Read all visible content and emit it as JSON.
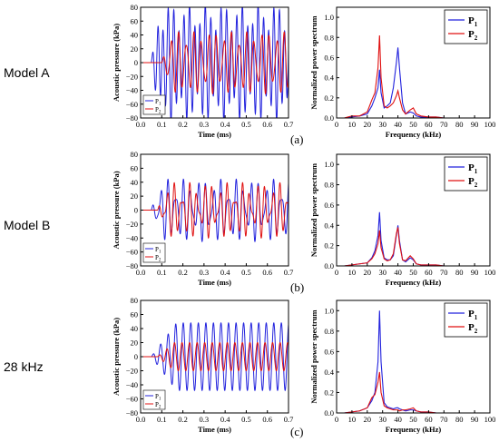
{
  "row_labels": [
    "Model A",
    "Model B",
    "28 kHz"
  ],
  "captions": [
    "(a)",
    "(b)",
    "(c)"
  ],
  "time_axis": {
    "xlabel": "Time (ms)",
    "ylabel": "Acoustic pressure (kPa)",
    "xlim": [
      0,
      0.7
    ],
    "ylim": [
      -80,
      80
    ],
    "xticks": [
      "0.0",
      "0.1",
      "0.2",
      "0.3",
      "0.4",
      "0.5",
      "0.6",
      "0.7"
    ],
    "yticks": [
      "80",
      "60",
      "40",
      "20",
      "0",
      "−20",
      "−40",
      "−60",
      "−80"
    ]
  },
  "freq_axis": {
    "xlabel": "Frequency (kHz)",
    "ylabel": "Normalized power spectrum",
    "xlim": [
      0,
      100
    ],
    "ylim": [
      0,
      1.1
    ],
    "xticks": [
      "0",
      "10",
      "20",
      "30",
      "40",
      "50",
      "60",
      "70",
      "80",
      "90",
      "100"
    ],
    "yticks": [
      "1.0",
      "0.8",
      "0.6",
      "0.4",
      "0.2",
      "0.0"
    ]
  },
  "legend": {
    "p1": "P",
    "p2": "P",
    "sub1": "1",
    "sub2": "2"
  },
  "colors": {
    "p1": "#2222dd",
    "p2": "#e01010"
  },
  "chart_data": [
    {
      "type": "line",
      "panel": "(a) time",
      "x_range": [
        0.05,
        0.7
      ],
      "series": [
        {
          "name": "P1",
          "signal": "oscillation",
          "onset_ms": 0.05,
          "freq_khz": 40,
          "amplitude_kpa": 65,
          "secondary_freq_khz": 28,
          "secondary_amplitude_kpa": 20
        },
        {
          "name": "P2",
          "signal": "oscillation",
          "onset_ms": 0.1,
          "freq_khz": 28,
          "amplitude_kpa": 35,
          "secondary_freq_khz": 40,
          "secondary_amplitude_kpa": 10
        }
      ]
    },
    {
      "type": "line",
      "panel": "(a) spectrum",
      "x": [
        0,
        5,
        10,
        15,
        20,
        23,
        25,
        27,
        28,
        29,
        31,
        33,
        35,
        37,
        39,
        40,
        41,
        43,
        45,
        48,
        50,
        52,
        55,
        60,
        65,
        70,
        80,
        90,
        100
      ],
      "series": [
        {
          "name": "P1",
          "values": [
            0.0,
            0.0,
            0.01,
            0.02,
            0.04,
            0.12,
            0.2,
            0.3,
            0.48,
            0.25,
            0.1,
            0.12,
            0.15,
            0.3,
            0.55,
            0.7,
            0.5,
            0.15,
            0.04,
            0.06,
            0.05,
            0.02,
            0.01,
            0.01,
            0.01,
            0.0,
            0.0,
            0.0,
            0.0
          ]
        },
        {
          "name": "P2",
          "values": [
            0.0,
            0.0,
            0.02,
            0.02,
            0.06,
            0.18,
            0.25,
            0.5,
            0.82,
            0.4,
            0.12,
            0.1,
            0.12,
            0.15,
            0.22,
            0.27,
            0.2,
            0.08,
            0.04,
            0.08,
            0.1,
            0.04,
            0.02,
            0.01,
            0.01,
            0.0,
            0.0,
            0.0,
            0.0
          ]
        }
      ]
    },
    {
      "type": "line",
      "panel": "(b) time",
      "x_range": [
        0.05,
        0.7
      ],
      "series": [
        {
          "name": "P1",
          "signal": "oscillation",
          "onset_ms": 0.05,
          "freq_khz": 28,
          "amplitude_kpa": 30,
          "secondary_freq_khz": 40,
          "secondary_amplitude_kpa": 15
        },
        {
          "name": "P2",
          "signal": "oscillation",
          "onset_ms": 0.08,
          "freq_khz": 28,
          "amplitude_kpa": 25,
          "secondary_freq_khz": 40,
          "secondary_amplitude_kpa": 15
        }
      ]
    },
    {
      "type": "line",
      "panel": "(b) spectrum",
      "x": [
        0,
        5,
        10,
        15,
        20,
        23,
        25,
        27,
        28,
        29,
        31,
        33,
        35,
        37,
        39,
        40,
        41,
        43,
        45,
        48,
        50,
        52,
        55,
        60,
        65,
        70,
        80,
        90,
        100
      ],
      "series": [
        {
          "name": "P1",
          "values": [
            0.0,
            0.0,
            0.01,
            0.02,
            0.03,
            0.08,
            0.15,
            0.3,
            0.53,
            0.25,
            0.08,
            0.06,
            0.06,
            0.1,
            0.3,
            0.4,
            0.25,
            0.06,
            0.04,
            0.08,
            0.06,
            0.02,
            0.01,
            0.01,
            0.01,
            0.0,
            0.0,
            0.0,
            0.0
          ]
        },
        {
          "name": "P2",
          "values": [
            0.0,
            0.0,
            0.01,
            0.02,
            0.03,
            0.07,
            0.12,
            0.22,
            0.35,
            0.18,
            0.07,
            0.05,
            0.06,
            0.12,
            0.32,
            0.38,
            0.22,
            0.06,
            0.05,
            0.1,
            0.07,
            0.02,
            0.01,
            0.01,
            0.01,
            0.0,
            0.0,
            0.0,
            0.0
          ]
        }
      ]
    },
    {
      "type": "line",
      "panel": "(c) time",
      "x_range": [
        0.05,
        0.7
      ],
      "series": [
        {
          "name": "P1",
          "signal": "oscillation",
          "onset_ms": 0.05,
          "freq_khz": 28,
          "amplitude_kpa": 48,
          "rise_ms": 0.12
        },
        {
          "name": "P2",
          "signal": "oscillation",
          "onset_ms": 0.08,
          "freq_khz": 28,
          "amplitude_kpa": 20,
          "rise_ms": 0.08
        }
      ]
    },
    {
      "type": "line",
      "panel": "(c) spectrum",
      "x": [
        0,
        5,
        10,
        15,
        20,
        23,
        25,
        27,
        28,
        29,
        31,
        33,
        35,
        37,
        39,
        40,
        41,
        43,
        45,
        48,
        50,
        52,
        55,
        60,
        65,
        70,
        80,
        90,
        100
      ],
      "series": [
        {
          "name": "P1",
          "values": [
            0.0,
            0.0,
            0.01,
            0.02,
            0.05,
            0.12,
            0.2,
            0.5,
            1.0,
            0.5,
            0.1,
            0.06,
            0.05,
            0.04,
            0.05,
            0.05,
            0.04,
            0.03,
            0.02,
            0.03,
            0.03,
            0.02,
            0.01,
            0.01,
            0.0,
            0.0,
            0.0,
            0.0,
            0.0
          ]
        },
        {
          "name": "P2",
          "values": [
            0.0,
            0.0,
            0.01,
            0.02,
            0.05,
            0.15,
            0.18,
            0.3,
            0.4,
            0.2,
            0.07,
            0.05,
            0.04,
            0.03,
            0.03,
            0.03,
            0.02,
            0.03,
            0.03,
            0.04,
            0.05,
            0.02,
            0.01,
            0.01,
            0.0,
            0.0,
            0.0,
            0.0,
            0.0
          ]
        }
      ]
    }
  ]
}
